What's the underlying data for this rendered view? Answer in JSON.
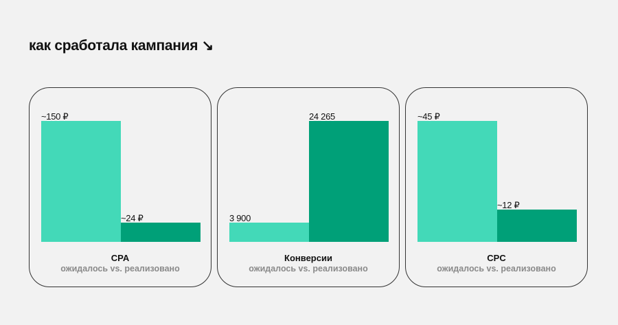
{
  "title": "как сработала кампания ↘",
  "colors": {
    "expected": "#43d9b8",
    "actual": "#00a078",
    "background": "#f2f2f2"
  },
  "chart_data": [
    {
      "type": "bar",
      "title": "CPA",
      "subtitle": "ожидалось vs. реализовано",
      "categories": [
        "ожидалось",
        "реализовано"
      ],
      "values": [
        150,
        24
      ],
      "labels": [
        "~150 ₽",
        "~24 ₽"
      ]
    },
    {
      "type": "bar",
      "title": "Конверсии",
      "subtitle": "ожидалось vs. реализовано",
      "categories": [
        "ожидалось",
        "реализовано"
      ],
      "values": [
        3900,
        24265
      ],
      "labels": [
        "3 900",
        "24 265"
      ]
    },
    {
      "type": "bar",
      "title": "CPC",
      "subtitle": "ожидалось vs. реализовано",
      "categories": [
        "ожидалось",
        "реализовано"
      ],
      "values": [
        45,
        12
      ],
      "labels": [
        "~45 ₽",
        "~12 ₽"
      ]
    }
  ]
}
